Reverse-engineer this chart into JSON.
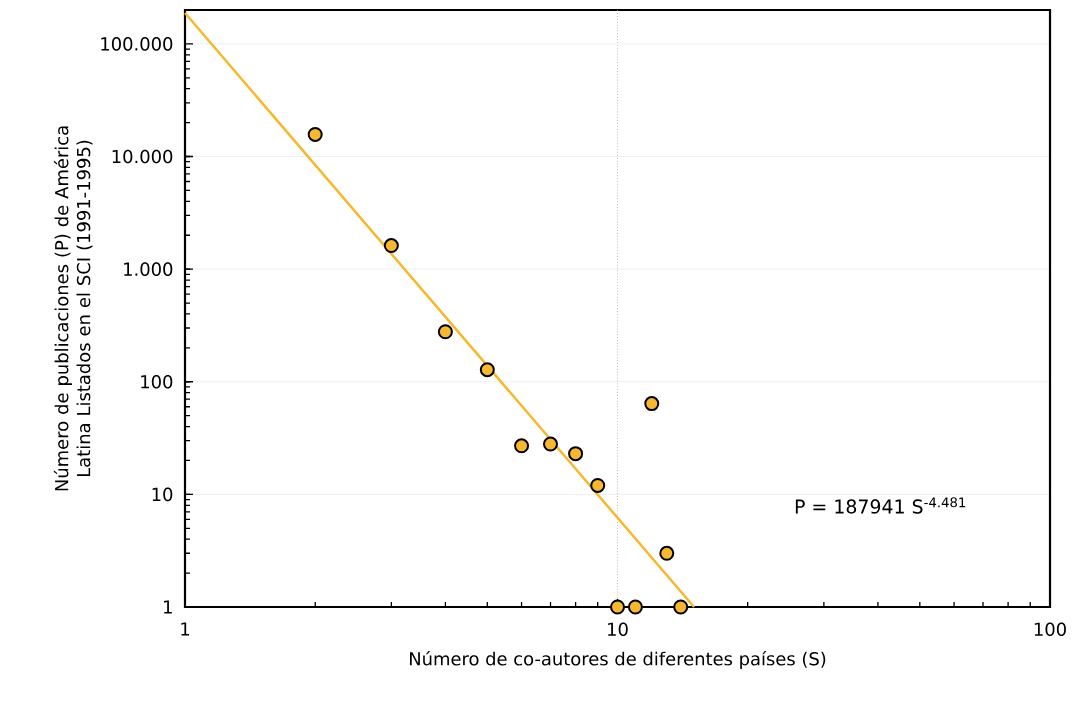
{
  "chart_data": {
    "type": "scatter",
    "xlabel": "Número de co-autores de diferentes países (S)",
    "ylabel": "Número de publicaciones (P) de América Latina Listados en el SCI (1991-1995)",
    "log": "xy",
    "grid": "y",
    "ref_lines": [
      {
        "axis": "x",
        "value": 10,
        "color": "#b2b2b2",
        "line_style": "dotted"
      }
    ],
    "xlim": [
      1,
      100
    ],
    "ylim": [
      1,
      200000
    ],
    "xticks": [
      1,
      10,
      100
    ],
    "yticks": [
      1,
      10,
      {
        "value": 100,
        "label": "100"
      },
      {
        "value": 1000,
        "label": "1.000"
      },
      {
        "value": 10000,
        "label": "10.000"
      },
      {
        "value": 100000,
        "label": "100.000"
      }
    ],
    "annotations": [
      "P = 187941 S$^{-4.481}$"
    ],
    "series": [
      {
        "color": "#f7b731",
        "marker": "circle",
        "x": [
          2,
          3,
          4,
          5,
          6,
          7,
          8,
          9,
          10,
          11,
          12,
          13,
          14
        ],
        "values": [
          15700,
          1620,
          278,
          128,
          27,
          28,
          23,
          12,
          1,
          1,
          64,
          3,
          1
        ]
      },
      {
        "type": "line",
        "color": "#f5b82e",
        "marker": "none",
        "line_style": "solid",
        "x": [
          1,
          15.03
        ],
        "values": [
          187941,
          1
        ]
      }
    ]
  }
}
